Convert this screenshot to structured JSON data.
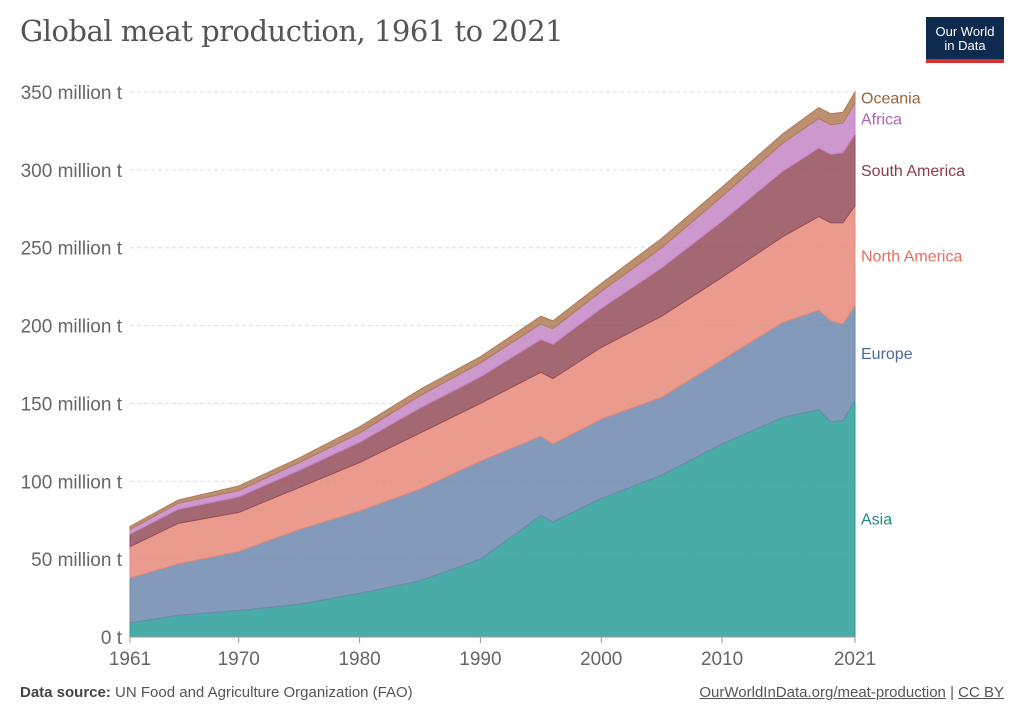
{
  "title": "Global meat production, 1961 to 2021",
  "logo": {
    "line1": "Our World",
    "line2": "in Data"
  },
  "footer": {
    "source_label": "Data source:",
    "source_text": "UN Food and Agriculture Organization (FAO)",
    "url": "OurWorldInData.org/meat-production",
    "separator": "|",
    "license": "CC BY"
  },
  "chart_data": {
    "type": "area",
    "stacked": true,
    "title": "Global meat production, 1961 to 2021",
    "x": [
      1961,
      1965,
      1970,
      1975,
      1980,
      1985,
      1990,
      1995,
      1996,
      2000,
      2005,
      2010,
      2015,
      2018,
      2019,
      2020,
      2021
    ],
    "x_ticks": [
      "1961",
      "1970",
      "1980",
      "1990",
      "2000",
      "2010",
      "2021"
    ],
    "y_ticks": [
      "0 t",
      "50 million t",
      "100 million t",
      "150 million t",
      "200 million t",
      "250 million t",
      "300 million t",
      "350 million t"
    ],
    "ylim": [
      0,
      350
    ],
    "y_unit": "million t",
    "grid": true,
    "legend_placement": "right, inline labels",
    "series": [
      {
        "name": "Asia",
        "color": "#2a9d96",
        "values": [
          9,
          14,
          17,
          21,
          28,
          36,
          50,
          78,
          74,
          89,
          104,
          124,
          141,
          146,
          138,
          139,
          152
        ]
      },
      {
        "name": "Europe",
        "color": "#6f88ae",
        "values": [
          29,
          33,
          38,
          48,
          53,
          59,
          63,
          51,
          50,
          51,
          50,
          54,
          61,
          64,
          65,
          62,
          61
        ]
      },
      {
        "name": "North America",
        "color": "#e8897a",
        "values": [
          20,
          26,
          25,
          27,
          31,
          36,
          37,
          41,
          42,
          46,
          52,
          53,
          55,
          60,
          63,
          65,
          64
        ]
      },
      {
        "name": "South America",
        "color": "#944d5a",
        "values": [
          8,
          9,
          10,
          11,
          13,
          16,
          17,
          21,
          22,
          25,
          31,
          36,
          42,
          44,
          44,
          45,
          46
        ]
      },
      {
        "name": "Africa",
        "color": "#c486c6",
        "values": [
          3,
          4,
          4,
          5,
          6,
          8,
          9,
          10,
          10,
          11,
          13,
          16,
          18,
          19,
          19,
          19,
          20
        ]
      },
      {
        "name": "Oceania",
        "color": "#b07b58",
        "values": [
          2,
          2,
          3,
          3,
          4,
          4,
          4,
          5,
          5,
          5,
          6,
          6,
          6,
          7,
          7,
          7,
          7
        ]
      }
    ]
  }
}
